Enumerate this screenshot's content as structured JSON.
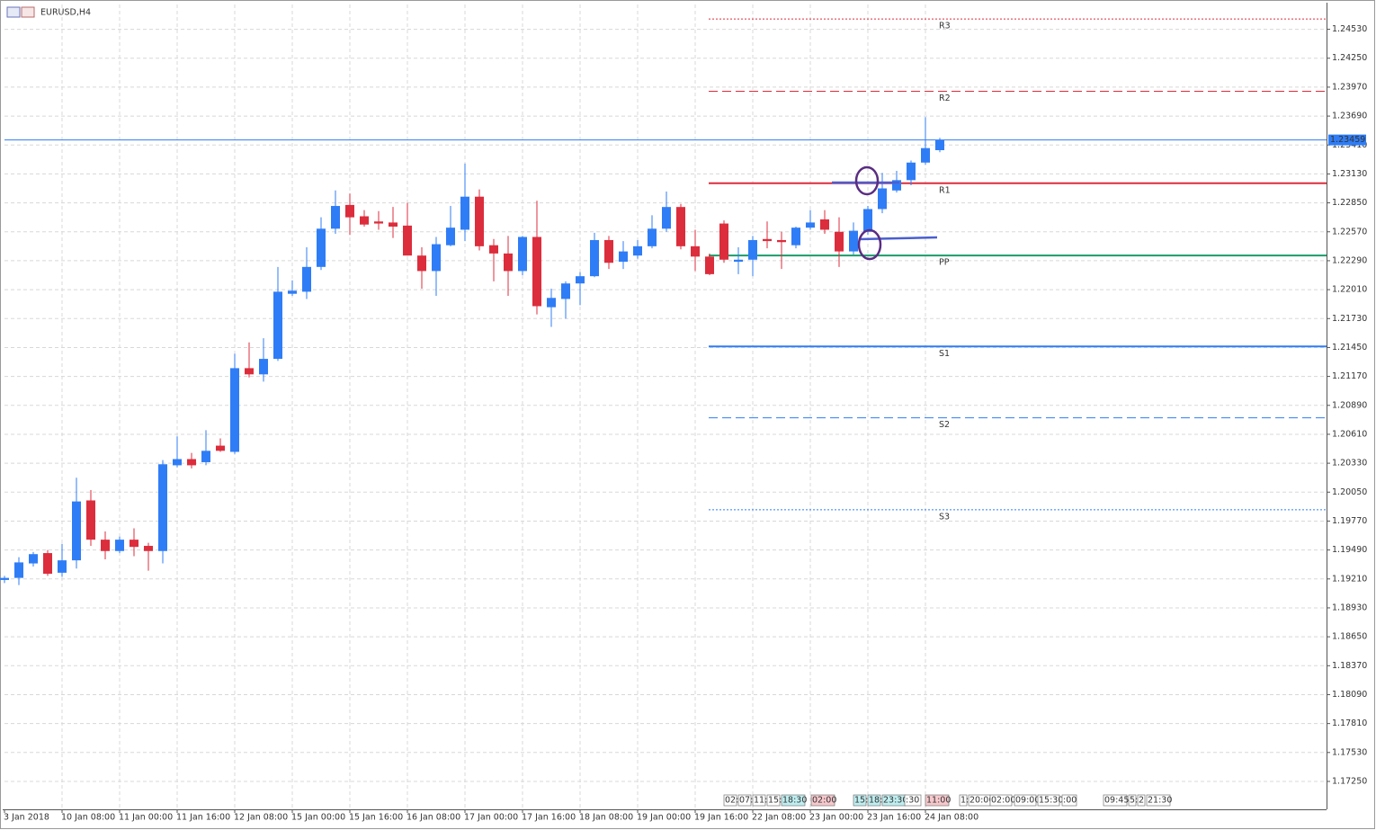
{
  "chart_data": {
    "type": "candlestick",
    "title": "EURUSD,H4",
    "categories": [
      "3 Jan 2018",
      null,
      null,
      null,
      "10 Jan 08:00",
      null,
      null,
      null,
      "11 Jan 00:00",
      null,
      null,
      null,
      "11 Jan 16:00",
      null,
      null,
      null,
      "12 Jan 08:00",
      null,
      null,
      null,
      "15 Jan 00:00",
      null,
      null,
      null,
      "15 Jan 16:00",
      null,
      null,
      null,
      "16 Jan 08:00",
      null,
      null,
      null,
      "17 Jan 00:00",
      null,
      null,
      null,
      "17 Jan 16:00",
      null,
      null,
      null,
      "18 Jan 08:00",
      null,
      null,
      null,
      "19 Jan 00:00",
      null,
      null,
      null,
      "19 Jan 16:00",
      null,
      null,
      null,
      "22 Jan 08:00",
      null,
      null,
      null,
      "23 Jan 00:00",
      null,
      null,
      null,
      "23 Jan 16:00",
      null,
      null,
      null,
      "24 Jan 08:00",
      null
    ],
    "open": [
      1.192,
      1.1922,
      1.1936,
      1.1946,
      1.1927,
      1.1939,
      1.1997,
      1.1959,
      1.1948,
      1.1959,
      1.1953,
      1.1948,
      1.2031,
      1.2037,
      1.2034,
      1.205,
      1.2044,
      1.2125,
      1.2119,
      1.2134,
      1.2197,
      1.2199,
      1.2223,
      1.226,
      1.2283,
      1.2272,
      1.2267,
      1.2266,
      1.2263,
      1.2234,
      1.2219,
      1.2244,
      1.2259,
      1.2291,
      1.2244,
      1.2236,
      1.2219,
      1.2252,
      1.2184,
      1.2192,
      1.2207,
      1.2214,
      1.2249,
      1.2228,
      1.2234,
      1.2243,
      1.226,
      1.2281,
      1.2243,
      1.2233,
      1.2265,
      1.2228,
      1.223,
      1.225,
      1.2249,
      1.2244,
      1.2261,
      1.2269,
      1.2257,
      1.2238,
      1.2257,
      1.2279,
      1.2297,
      1.2307,
      1.2324,
      1.2336
    ],
    "high": [
      1.1924,
      1.1942,
      1.1947,
      1.1949,
      1.1955,
      1.2019,
      1.2007,
      1.1967,
      1.1962,
      1.197,
      1.1956,
      1.2036,
      1.2059,
      1.2043,
      1.2065,
      1.2057,
      1.2139,
      1.215,
      1.2154,
      1.2223,
      1.221,
      1.2242,
      1.2271,
      1.2297,
      1.2294,
      1.2278,
      1.2277,
      1.2281,
      1.2285,
      1.2242,
      1.2252,
      1.2282,
      1.2323,
      1.2298,
      1.225,
      1.2253,
      1.2253,
      1.2287,
      1.2202,
      1.2209,
      1.2218,
      1.2256,
      1.2253,
      1.2248,
      1.2249,
      1.2273,
      1.2296,
      1.2284,
      1.2259,
      1.2236,
      1.2268,
      1.2242,
      1.2253,
      1.2267,
      1.2257,
      1.2262,
      1.2278,
      1.2278,
      1.2271,
      1.2266,
      1.2282,
      1.2314,
      1.2316,
      1.2326,
      1.2368,
      1.2348
    ],
    "low": [
      1.1917,
      1.1915,
      1.1933,
      1.1924,
      1.1923,
      1.1931,
      1.1953,
      1.194,
      1.1946,
      1.1943,
      1.1929,
      1.1936,
      1.2029,
      1.2028,
      1.2031,
      1.2044,
      1.2042,
      1.2116,
      1.2112,
      1.2132,
      1.2195,
      1.2192,
      1.222,
      1.2255,
      1.2254,
      1.2262,
      1.2259,
      1.2251,
      1.2234,
      1.2202,
      1.2195,
      1.2243,
      1.2248,
      1.2239,
      1.2209,
      1.2195,
      1.2215,
      1.2177,
      1.2165,
      1.2173,
      1.2186,
      1.2213,
      1.2221,
      1.2221,
      1.2231,
      1.2241,
      1.2257,
      1.224,
      1.2219,
      1.2215,
      1.2227,
      1.2216,
      1.2214,
      1.2241,
      1.2221,
      1.2241,
      1.2259,
      1.2255,
      1.2223,
      1.2235,
      1.2254,
      1.2275,
      1.2295,
      1.2302,
      1.2322,
      1.2334
    ],
    "close": [
      1.1922,
      1.1937,
      1.1945,
      1.1926,
      1.1939,
      1.1996,
      1.1959,
      1.1948,
      1.1959,
      1.1952,
      1.1948,
      1.2032,
      1.2037,
      1.2031,
      1.2045,
      1.2045,
      1.2125,
      1.2119,
      1.2134,
      1.2199,
      1.22,
      1.2223,
      1.226,
      1.2282,
      1.2271,
      1.2264,
      1.2265,
      1.2262,
      1.2234,
      1.2219,
      1.2245,
      1.2261,
      1.2291,
      1.2243,
      1.2236,
      1.2219,
      1.2252,
      1.2185,
      1.2193,
      1.2207,
      1.2214,
      1.2249,
      1.2227,
      1.2238,
      1.2243,
      1.226,
      1.2281,
      1.2243,
      1.2233,
      1.2216,
      1.223,
      1.223,
      1.2249,
      1.2248,
      1.2247,
      1.2261,
      1.2266,
      1.2259,
      1.2238,
      1.2258,
      1.2279,
      1.2299,
      1.2307,
      1.2324,
      1.2338,
      1.2346
    ],
    "up_color": "#2f7df6",
    "down_color": "#dc2d3c",
    "ylim": [
      1.1698,
      1.2477
    ],
    "yticks": [
      {
        "value": 1.2453,
        "label": "1.24530"
      },
      {
        "value": 1.2425,
        "label": "1.24250"
      },
      {
        "value": 1.2397,
        "label": "1.23970"
      },
      {
        "value": 1.2369,
        "label": "1.23690"
      },
      {
        "value": 1.2341,
        "label": "1.23410"
      },
      {
        "value": 1.2313,
        "label": "1.23130"
      },
      {
        "value": 1.2285,
        "label": "1.22850"
      },
      {
        "value": 1.2257,
        "label": "1.22570"
      },
      {
        "value": 1.2229,
        "label": "1.22290"
      },
      {
        "value": 1.2201,
        "label": "1.22010"
      },
      {
        "value": 1.2173,
        "label": "1.21730"
      },
      {
        "value": 1.2145,
        "label": "1.21450"
      },
      {
        "value": 1.2117,
        "label": "1.21170"
      },
      {
        "value": 1.2089,
        "label": "1.20890"
      },
      {
        "value": 1.2061,
        "label": "1.20610"
      },
      {
        "value": 1.2033,
        "label": "1.20330"
      },
      {
        "value": 1.2005,
        "label": "1.20050"
      },
      {
        "value": 1.1977,
        "label": "1.19770"
      },
      {
        "value": 1.1949,
        "label": "1.19490"
      },
      {
        "value": 1.1921,
        "label": "1.19210"
      },
      {
        "value": 1.1893,
        "label": "1.18930"
      },
      {
        "value": 1.1865,
        "label": "1.18650"
      },
      {
        "value": 1.1837,
        "label": "1.18370"
      },
      {
        "value": 1.1809,
        "label": "1.18090"
      },
      {
        "value": 1.1781,
        "label": "1.17810"
      },
      {
        "value": 1.1753,
        "label": "1.17530"
      },
      {
        "value": 1.1725,
        "label": "1.17250"
      }
    ],
    "grid": true,
    "levels": [
      {
        "label": "R3",
        "value": 1.2463,
        "color": "#dc2d3c",
        "style": "dotted"
      },
      {
        "label": "R2",
        "value": 1.2393,
        "color": "#dc2d3c",
        "style": "dashed"
      },
      {
        "label": "R1",
        "value": 1.2304,
        "color": "#dc2d3c",
        "style": "solid"
      },
      {
        "label": "PP",
        "value": 1.2234,
        "color": "#1a9c6a",
        "style": "solid"
      },
      {
        "label": "S1",
        "value": 1.2146,
        "color": "#2f7df6",
        "style": "solid"
      },
      {
        "label": "S2",
        "value": 1.2077,
        "color": "#2f7df6",
        "style": "dashed"
      },
      {
        "label": "S3",
        "value": 1.1988,
        "color": "#2f7df6",
        "style": "dotted"
      }
    ],
    "current_price": {
      "value": 1.23459,
      "label": "1.23459",
      "color": "#2f7df6"
    },
    "calendar": [
      {
        "text": "02:",
        "color": "#ffffff"
      },
      {
        "text": "07:",
        "color": "#ffffff"
      },
      {
        "text": "11:",
        "color": "#ffffff"
      },
      {
        "text": "15:",
        "color": "#ffffff"
      },
      {
        "text": "18:30",
        "color": "#bfeef0"
      },
      {
        "text": "02:00",
        "color": "#f6c8cc"
      },
      {
        "text": "15:",
        "color": "#bfeef0"
      },
      {
        "text": "18:",
        "color": "#bfeef0"
      },
      {
        "text": "23:30",
        "color": "#bfeef0"
      },
      {
        "text": ":30",
        "color": "#ffffff"
      },
      {
        "text": "11:00",
        "color": "#f6c8cc"
      },
      {
        "text": "1:",
        "color": "#ffffff"
      },
      {
        "text": "20:00",
        "color": "#ffffff"
      },
      {
        "text": "02:00",
        "color": "#ffffff"
      },
      {
        "text": "09:00",
        "color": "#ffffff"
      },
      {
        "text": "15:30",
        "color": "#ffffff"
      },
      {
        "text": ":00",
        "color": "#ffffff"
      },
      {
        "text": "09:45",
        "color": "#ffffff"
      },
      {
        "text": "5:",
        "color": "#ffffff"
      },
      {
        "text": "2",
        "color": "#ffffff"
      },
      {
        "text": "21:30",
        "color": "#ffffff"
      }
    ]
  }
}
